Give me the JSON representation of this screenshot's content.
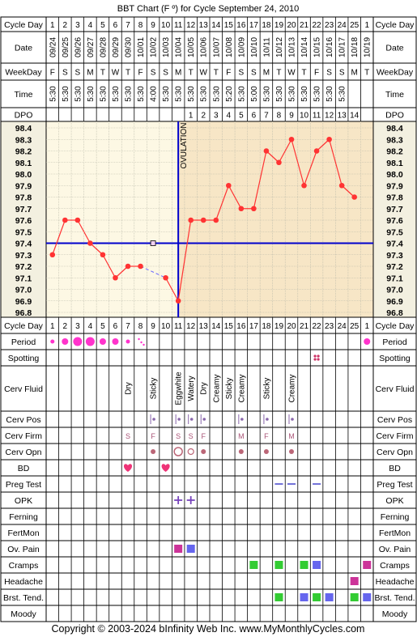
{
  "title": "BBT Chart (F º) for Cycle September 24, 2010",
  "copyright": "Copyright © 2003-2024 bInfinity Web Inc.    www.MyMonthlyCycles.com",
  "row_labels": {
    "cycle_day": "Cycle Day",
    "date": "Date",
    "weekday": "WeekDay",
    "time": "Time",
    "dpo": "DPO",
    "period": "Period",
    "spotting": "Spotting",
    "cerv_fluid": "Cerv Fluid",
    "cerv_pos": "Cerv Pos",
    "cerv_firm": "Cerv Firm",
    "cerv_opn": "Cerv Opn",
    "bd": "BD",
    "preg_test": "Preg Test",
    "opk": "OPK",
    "ferning": "Ferning",
    "fertmon": "FertMon",
    "ov_pain": "Ov. Pain",
    "cramps": "Cramps",
    "headache": "Headache",
    "brst_tend": "Brst. Tend.",
    "moody": "Moody"
  },
  "ovulation_label": "OVULATION",
  "colors": {
    "temp_line": "#ff3333",
    "coverline": "#0000cc",
    "pre_bg": "#fdf8e4",
    "post_bg": "#f7e6c6",
    "period": "#ff33cc",
    "green_symptom": "#33cc33",
    "blue_symptom": "#6666ee",
    "pink_symptom": "#cc3399"
  },
  "columns": {
    "cycle_days": [
      "1",
      "2",
      "3",
      "4",
      "5",
      "6",
      "7",
      "8",
      "9",
      "10",
      "11",
      "12",
      "13",
      "14",
      "15",
      "16",
      "17",
      "18",
      "19",
      "20",
      "21",
      "22",
      "23",
      "24",
      "25",
      "1"
    ],
    "dates": [
      "09/24",
      "09/25",
      "09/26",
      "09/27",
      "09/28",
      "09/29",
      "09/30",
      "10/01",
      "10/02",
      "10/03",
      "10/04",
      "10/05",
      "10/06",
      "10/07",
      "10/08",
      "10/09",
      "10/10",
      "10/11",
      "10/12",
      "10/13",
      "10/14",
      "10/15",
      "10/16",
      "10/17",
      "10/18",
      "10/19"
    ],
    "weekdays": [
      "F",
      "S",
      "S",
      "M",
      "T",
      "W",
      "T",
      "F",
      "S",
      "S",
      "M",
      "T",
      "W",
      "T",
      "F",
      "S",
      "S",
      "M",
      "T",
      "W",
      "T",
      "F",
      "S",
      "S",
      "M",
      "T"
    ],
    "times": [
      "5:30",
      "5:30",
      "5:30",
      "5:30",
      "5:30",
      "5:30",
      "5:30",
      "5:30",
      "4:00",
      "5:30",
      "5:30",
      "5:30",
      "5:30",
      "5:30",
      "5:20",
      "5:30",
      "5:00",
      "5:30",
      "5:30",
      "5:30",
      "5:30",
      "5:30",
      "5:30",
      "5:30",
      "",
      ""
    ],
    "dpo": [
      "",
      "",
      "",
      "",
      "",
      "",
      "",
      "",
      "",
      "",
      "",
      "1",
      "2",
      "3",
      "4",
      "5",
      "6",
      "7",
      "8",
      "9",
      "10",
      "11",
      "12",
      "13",
      "14",
      ""
    ]
  },
  "cerv_fluid": [
    {
      "col": 6,
      "text": "Dry"
    },
    {
      "col": 8,
      "text": "Sticky"
    },
    {
      "col": 10,
      "text": "Eggwhite"
    },
    {
      "col": 11,
      "text": "Watery"
    },
    {
      "col": 12,
      "text": "Dry"
    },
    {
      "col": 13,
      "text": "Creamy"
    },
    {
      "col": 14,
      "text": "Sticky"
    },
    {
      "col": 15,
      "text": "Creamy"
    },
    {
      "col": 17,
      "text": "Sticky"
    },
    {
      "col": 19,
      "text": "Creamy"
    }
  ],
  "cerv_firm": [
    {
      "col": 6,
      "text": "S"
    },
    {
      "col": 8,
      "text": "F"
    },
    {
      "col": 10,
      "text": "S"
    },
    {
      "col": 11,
      "text": "S"
    },
    {
      "col": 12,
      "text": "F"
    },
    {
      "col": 15,
      "text": "M"
    },
    {
      "col": 17,
      "text": "F"
    },
    {
      "col": 19,
      "text": "M"
    }
  ],
  "chart_data": {
    "type": "line",
    "x": [
      1,
      2,
      3,
      4,
      5,
      6,
      7,
      8,
      9,
      10,
      11,
      12,
      13,
      14,
      15,
      16,
      17,
      18,
      19,
      20,
      21,
      22,
      23,
      24,
      25
    ],
    "y": [
      97.3,
      97.6,
      97.6,
      97.4,
      97.3,
      97.1,
      97.2,
      97.2,
      97.4,
      97.1,
      96.9,
      97.6,
      97.6,
      97.6,
      97.9,
      97.7,
      97.7,
      98.2,
      98.1,
      98.3,
      97.9,
      98.2,
      98.3,
      97.9,
      97.8
    ],
    "discarded_x": [
      9
    ],
    "coverline": 97.4,
    "ovulation_day": 11,
    "ylim": [
      96.8,
      98.4
    ],
    "yticks": [
      "98.4",
      "98.3",
      "98.2",
      "98.1",
      "98.0",
      "97.9",
      "97.8",
      "97.7",
      "97.6",
      "97.5",
      "97.4",
      "97.3",
      "97.2",
      "97.1",
      "97.0",
      "96.9",
      "96.8"
    ]
  },
  "symptoms": {
    "period": [
      {
        "col": 0,
        "level": 1
      },
      {
        "col": 1,
        "level": 2
      },
      {
        "col": 2,
        "level": 3
      },
      {
        "col": 3,
        "level": 3
      },
      {
        "col": 4,
        "level": 2
      },
      {
        "col": 5,
        "level": 2
      },
      {
        "col": 6,
        "level": 1
      },
      {
        "col": 7,
        "level": 0
      },
      {
        "col": 25,
        "level": 2
      }
    ],
    "spotting": [
      21
    ],
    "cerv_pos": [
      8,
      10,
      11,
      12,
      15,
      17,
      19
    ],
    "cerv_opn": [
      {
        "col": 8,
        "type": "dot"
      },
      {
        "col": 10,
        "type": "ring-large"
      },
      {
        "col": 11,
        "type": "ring-small"
      },
      {
        "col": 12,
        "type": "dot"
      },
      {
        "col": 15,
        "type": "dot"
      },
      {
        "col": 17,
        "type": "dot"
      },
      {
        "col": 19,
        "type": "dot"
      }
    ],
    "bd": [
      6,
      9
    ],
    "preg_test": [
      18,
      19,
      21
    ],
    "opk": [
      10,
      11
    ],
    "ov_pain": [
      {
        "col": 10,
        "color": "pink"
      },
      {
        "col": 11,
        "color": "blue"
      }
    ],
    "cramps": [
      {
        "col": 16,
        "color": "green"
      },
      {
        "col": 18,
        "color": "green"
      },
      {
        "col": 20,
        "color": "green"
      },
      {
        "col": 21,
        "color": "blue"
      },
      {
        "col": 25,
        "color": "pink"
      }
    ],
    "headache": [
      {
        "col": 24,
        "color": "pink"
      }
    ],
    "brst_tend": [
      {
        "col": 18,
        "color": "green"
      },
      {
        "col": 20,
        "color": "blue"
      },
      {
        "col": 21,
        "color": "green"
      },
      {
        "col": 22,
        "color": "blue"
      },
      {
        "col": 24,
        "color": "green"
      },
      {
        "col": 25,
        "color": "blue"
      }
    ]
  }
}
